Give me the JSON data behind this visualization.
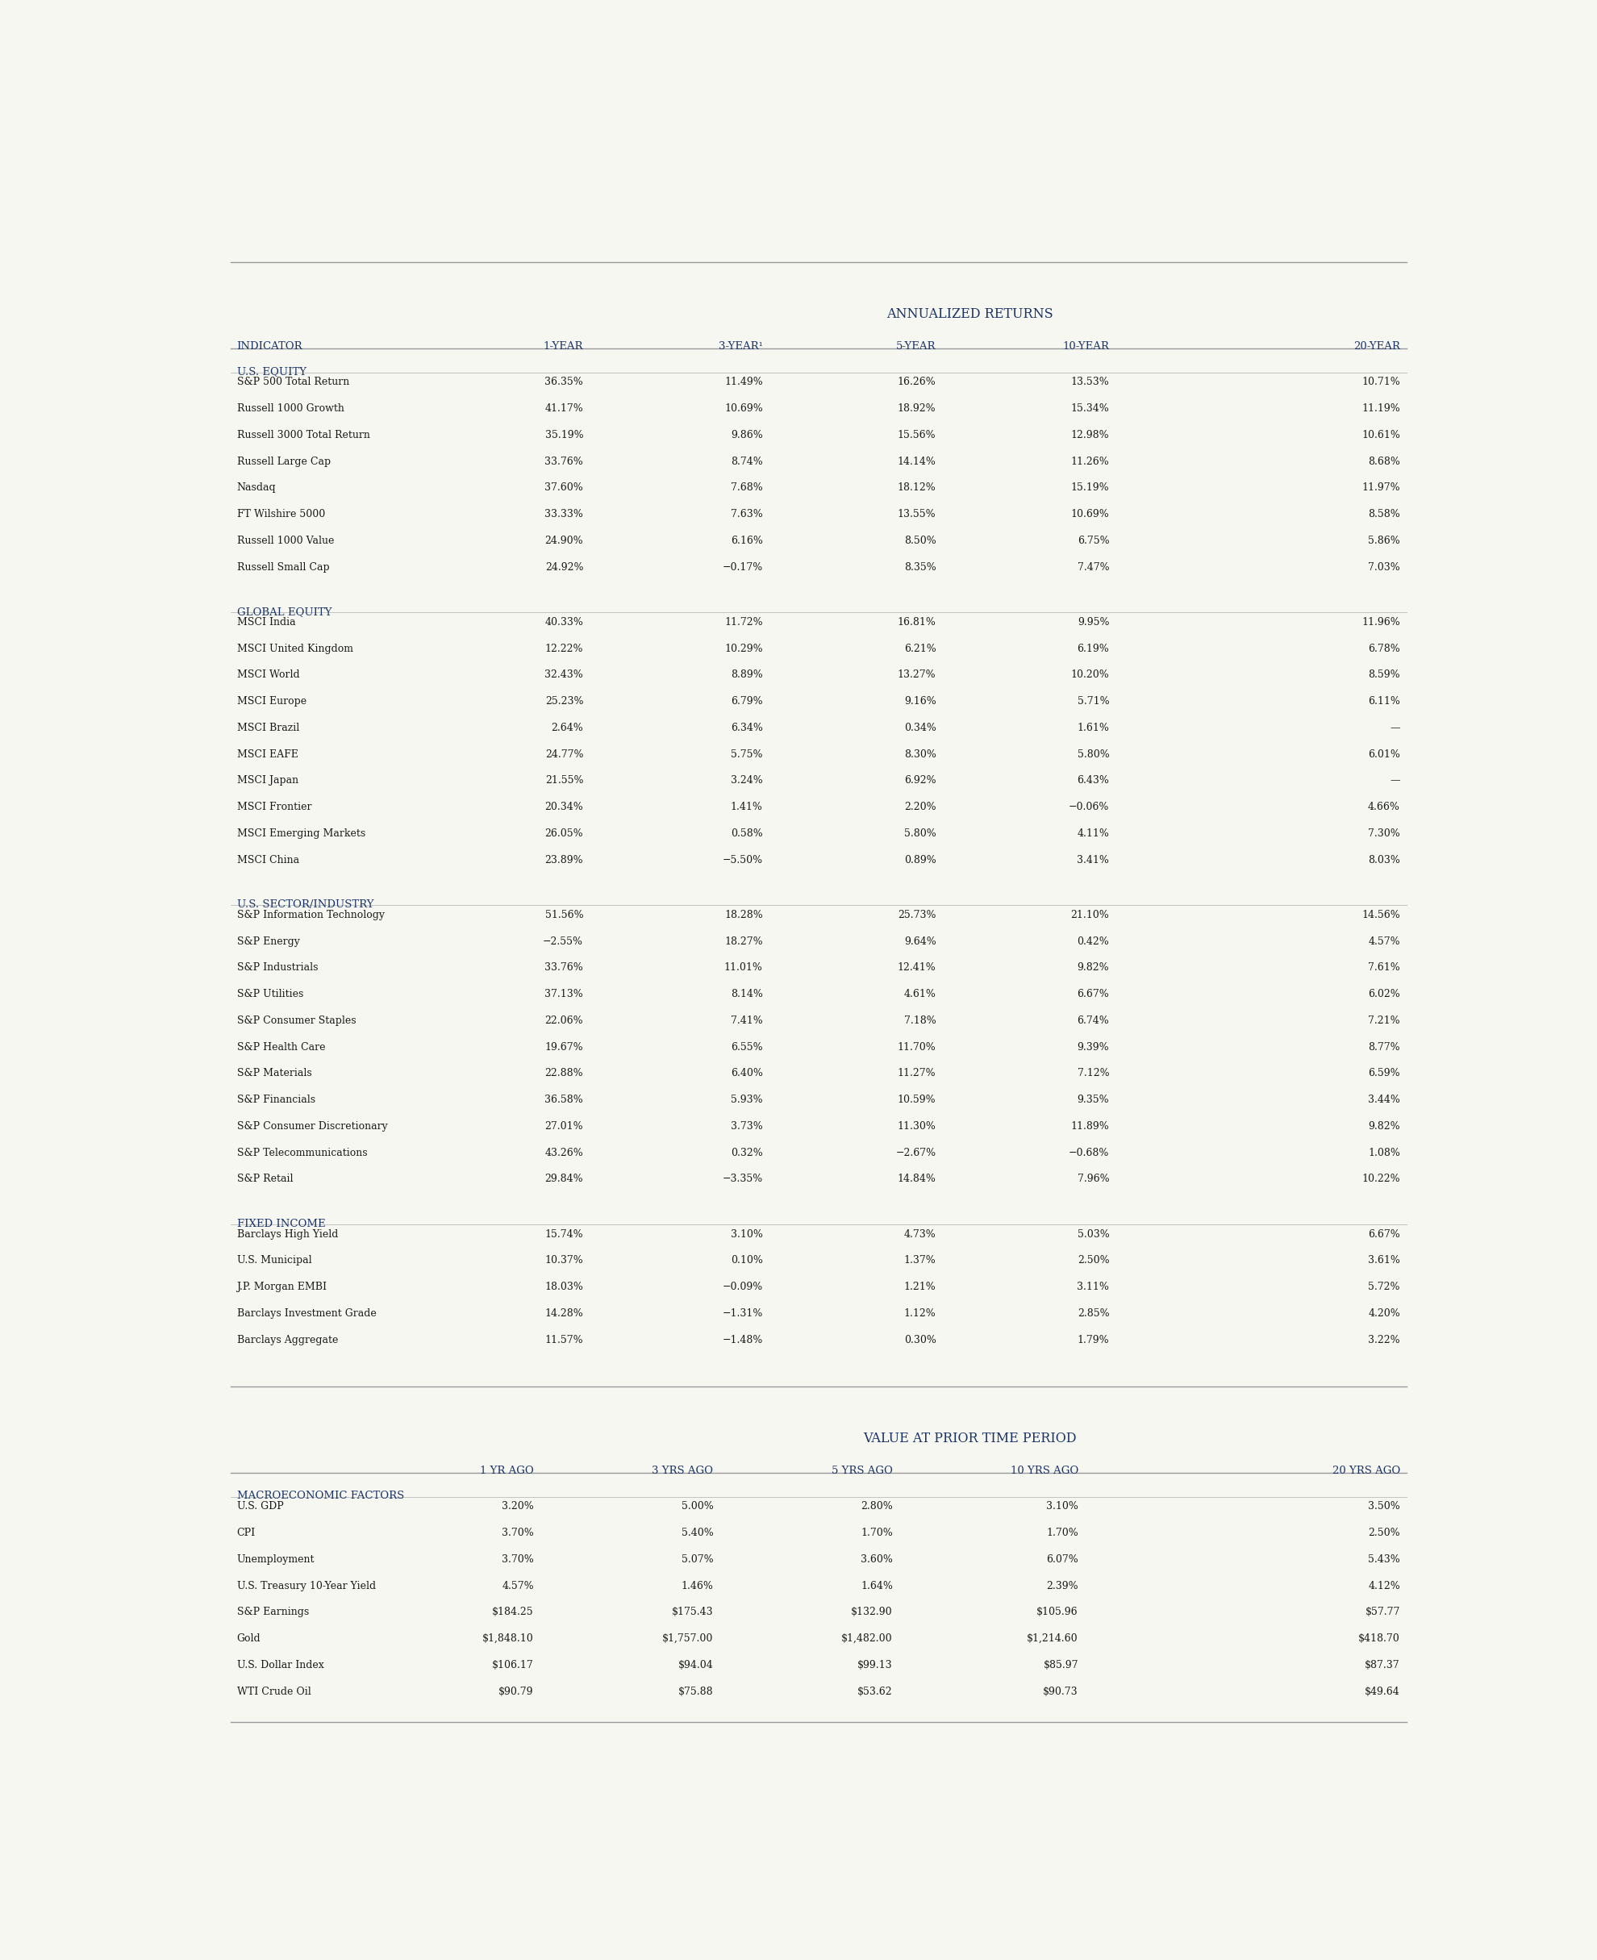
{
  "bg_color": "#f7f7f2",
  "header_color": "#1a3366",
  "section_color": "#1a3366",
  "text_color": "#1a1a1a",
  "line_color_heavy": "#999999",
  "line_color_light": "#bbbbbb",
  "title1": "ANNUALIZED RETURNS",
  "title2": "VALUE AT PRIOR TIME PERIOD",
  "col_headers1": [
    "INDICATOR",
    "1-YEAR",
    "3-YEAR¹",
    "5-YEAR",
    "10-YEAR",
    "20-YEAR"
  ],
  "col_headers2": [
    "",
    "1 YR AGO",
    "3 YRS AGO",
    "5 YRS AGO",
    "10 YRS AGO",
    "20 YRS AGO"
  ],
  "sections": [
    {
      "name": "U.S. EQUITY",
      "rows": [
        [
          "S&P 500 Total Return",
          "36.35%",
          "11.49%",
          "16.26%",
          "13.53%",
          "10.71%"
        ],
        [
          "Russell 1000 Growth",
          "41.17%",
          "10.69%",
          "18.92%",
          "15.34%",
          "11.19%"
        ],
        [
          "Russell 3000 Total Return",
          "35.19%",
          "9.86%",
          "15.56%",
          "12.98%",
          "10.61%"
        ],
        [
          "Russell Large Cap",
          "33.76%",
          "8.74%",
          "14.14%",
          "11.26%",
          "8.68%"
        ],
        [
          "Nasdaq",
          "37.60%",
          "7.68%",
          "18.12%",
          "15.19%",
          "11.97%"
        ],
        [
          "FT Wilshire 5000",
          "33.33%",
          "7.63%",
          "13.55%",
          "10.69%",
          "8.58%"
        ],
        [
          "Russell 1000 Value",
          "24.90%",
          "6.16%",
          "8.50%",
          "6.75%",
          "5.86%"
        ],
        [
          "Russell Small Cap",
          "24.92%",
          "−0.17%",
          "8.35%",
          "7.47%",
          "7.03%"
        ]
      ]
    },
    {
      "name": "GLOBAL EQUITY",
      "rows": [
        [
          "MSCI India",
          "40.33%",
          "11.72%",
          "16.81%",
          "9.95%",
          "11.96%"
        ],
        [
          "MSCI United Kingdom",
          "12.22%",
          "10.29%",
          "6.21%",
          "6.19%",
          "6.78%"
        ],
        [
          "MSCI World",
          "32.43%",
          "8.89%",
          "13.27%",
          "10.20%",
          "8.59%"
        ],
        [
          "MSCI Europe",
          "25.23%",
          "6.79%",
          "9.16%",
          "5.71%",
          "6.11%"
        ],
        [
          "MSCI Brazil",
          "2.64%",
          "6.34%",
          "0.34%",
          "1.61%",
          "—"
        ],
        [
          "MSCI EAFE",
          "24.77%",
          "5.75%",
          "8.30%",
          "5.80%",
          "6.01%"
        ],
        [
          "MSCI Japan",
          "21.55%",
          "3.24%",
          "6.92%",
          "6.43%",
          "—"
        ],
        [
          "MSCI Frontier",
          "20.34%",
          "1.41%",
          "2.20%",
          "−0.06%",
          "4.66%"
        ],
        [
          "MSCI Emerging Markets",
          "26.05%",
          "0.58%",
          "5.80%",
          "4.11%",
          "7.30%"
        ],
        [
          "MSCI China",
          "23.89%",
          "−5.50%",
          "0.89%",
          "3.41%",
          "8.03%"
        ]
      ]
    },
    {
      "name": "U.S. SECTOR/INDUSTRY",
      "rows": [
        [
          "S&P Information Technology",
          "51.56%",
          "18.28%",
          "25.73%",
          "21.10%",
          "14.56%"
        ],
        [
          "S&P Energy",
          "−2.55%",
          "18.27%",
          "9.64%",
          "0.42%",
          "4.57%"
        ],
        [
          "S&P Industrials",
          "33.76%",
          "11.01%",
          "12.41%",
          "9.82%",
          "7.61%"
        ],
        [
          "S&P Utilities",
          "37.13%",
          "8.14%",
          "4.61%",
          "6.67%",
          "6.02%"
        ],
        [
          "S&P Consumer Staples",
          "22.06%",
          "7.41%",
          "7.18%",
          "6.74%",
          "7.21%"
        ],
        [
          "S&P Health Care",
          "19.67%",
          "6.55%",
          "11.70%",
          "9.39%",
          "8.77%"
        ],
        [
          "S&P Materials",
          "22.88%",
          "6.40%",
          "11.27%",
          "7.12%",
          "6.59%"
        ],
        [
          "S&P Financials",
          "36.58%",
          "5.93%",
          "10.59%",
          "9.35%",
          "3.44%"
        ],
        [
          "S&P Consumer Discretionary",
          "27.01%",
          "3.73%",
          "11.30%",
          "11.89%",
          "9.82%"
        ],
        [
          "S&P Telecommunications",
          "43.26%",
          "0.32%",
          "−2.67%",
          "−0.68%",
          "1.08%"
        ],
        [
          "S&P Retail",
          "29.84%",
          "−3.35%",
          "14.84%",
          "7.96%",
          "10.22%"
        ]
      ]
    },
    {
      "name": "FIXED INCOME",
      "rows": [
        [
          "Barclays High Yield",
          "15.74%",
          "3.10%",
          "4.73%",
          "5.03%",
          "6.67%"
        ],
        [
          "U.S. Municipal",
          "10.37%",
          "0.10%",
          "1.37%",
          "2.50%",
          "3.61%"
        ],
        [
          "J.P. Morgan EMBI",
          "18.03%",
          "−0.09%",
          "1.21%",
          "3.11%",
          "5.72%"
        ],
        [
          "Barclays Investment Grade",
          "14.28%",
          "−1.31%",
          "1.12%",
          "2.85%",
          "4.20%"
        ],
        [
          "Barclays Aggregate",
          "11.57%",
          "−1.48%",
          "0.30%",
          "1.79%",
          "3.22%"
        ]
      ]
    }
  ],
  "macro_section": {
    "name": "MACROECONOMIC FACTORS",
    "rows": [
      [
        "U.S. GDP",
        "3.20%",
        "5.00%",
        "2.80%",
        "3.10%",
        "3.50%"
      ],
      [
        "CPI",
        "3.70%",
        "5.40%",
        "1.70%",
        "1.70%",
        "2.50%"
      ],
      [
        "Unemployment",
        "3.70%",
        "5.07%",
        "3.60%",
        "6.07%",
        "5.43%"
      ],
      [
        "U.S. Treasury 10-Year Yield",
        "4.57%",
        "1.46%",
        "1.64%",
        "2.39%",
        "4.12%"
      ],
      [
        "S&P Earnings",
        "$184.25",
        "$175.43",
        "$132.90",
        "$105.96",
        "$57.77"
      ],
      [
        "Gold",
        "$1,848.10",
        "$1,757.00",
        "$1,482.00",
        "$1,214.60",
        "$418.70"
      ],
      [
        "U.S. Dollar Index",
        "$106.17",
        "$94.04",
        "$99.13",
        "$85.97",
        "$87.37"
      ],
      [
        "WTI Crude Oil",
        "$90.79",
        "$75.88",
        "$53.62",
        "$90.73",
        "$49.64"
      ]
    ]
  }
}
